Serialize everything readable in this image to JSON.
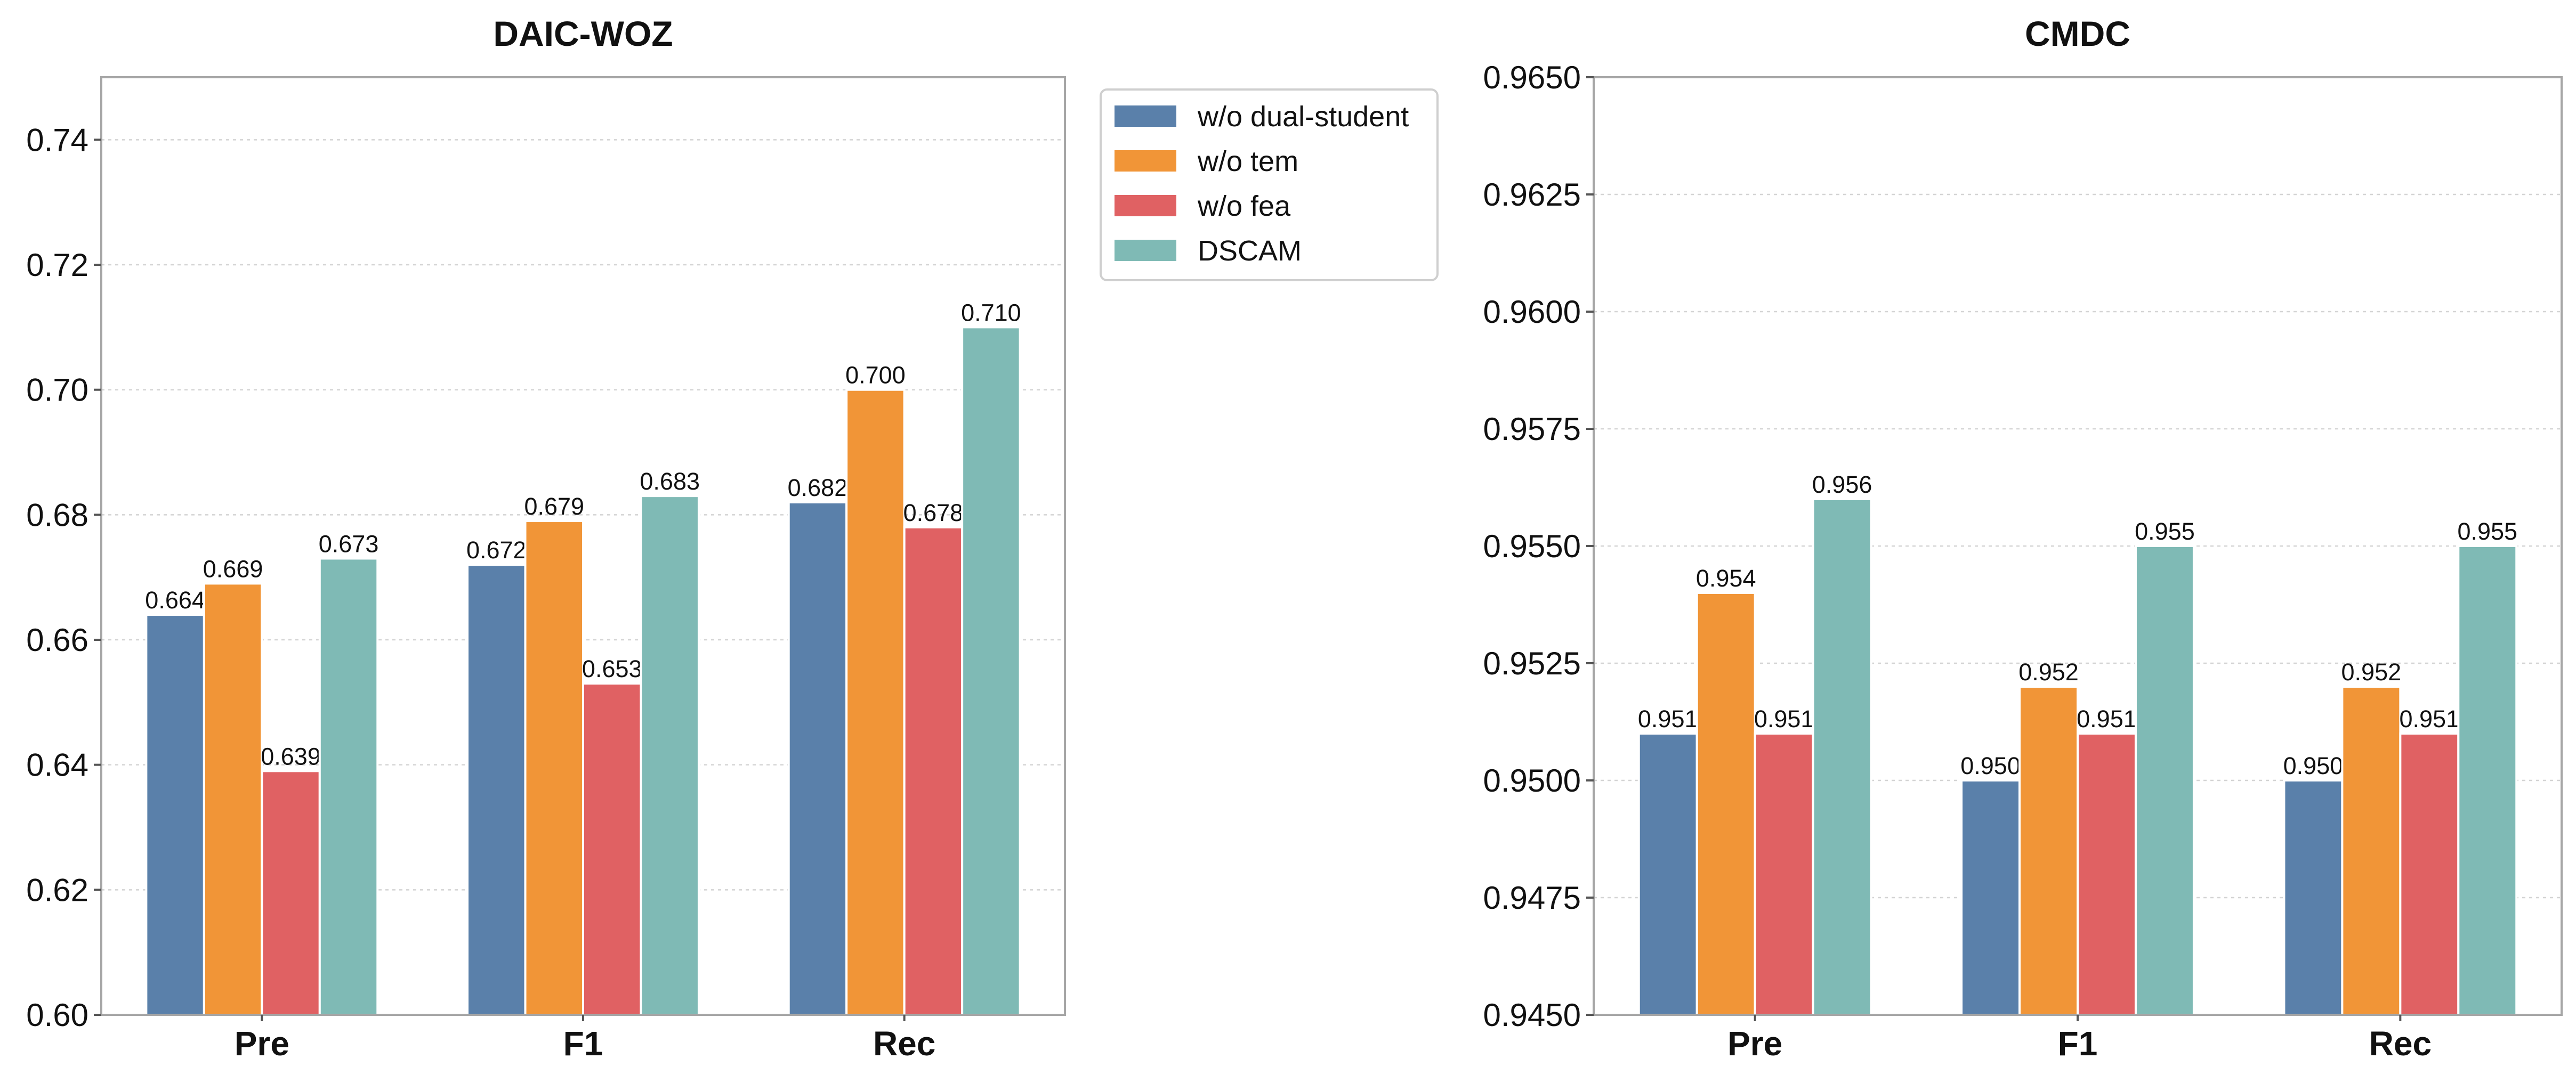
{
  "colors": {
    "w/o dual-student": "#5a80aa",
    "w/o tem": "#f19537",
    "w/o fea": "#e06163",
    "DSCAM": "#7fbab5"
  },
  "legend": {
    "items": [
      "w/o dual-student",
      "w/o tem",
      "w/o fea",
      "DSCAM"
    ]
  },
  "chart_data": [
    {
      "type": "bar",
      "title": "DAIC-WOZ",
      "categories": [
        "Pre",
        "F1",
        "Rec"
      ],
      "xlabel": "",
      "ylabel": "",
      "ylim": [
        0.6,
        0.75
      ],
      "yticks": [
        0.6,
        0.62,
        0.64,
        0.66,
        0.68,
        0.7,
        0.72,
        0.74
      ],
      "ytick_labels": [
        "0.60",
        "0.62",
        "0.64",
        "0.66",
        "0.68",
        "0.70",
        "0.72",
        "0.74"
      ],
      "grid": true,
      "legend_position": "outside-right",
      "series": [
        {
          "name": "w/o dual-student",
          "values": [
            0.664,
            0.672,
            0.682
          ],
          "labels": [
            "0.664",
            "0.672",
            "0.682"
          ]
        },
        {
          "name": "w/o tem",
          "values": [
            0.669,
            0.679,
            0.7
          ],
          "labels": [
            "0.669",
            "0.679",
            "0.700"
          ]
        },
        {
          "name": "w/o fea",
          "values": [
            0.639,
            0.653,
            0.678
          ],
          "labels": [
            "0.639",
            "0.653",
            "0.678"
          ]
        },
        {
          "name": "DSCAM",
          "values": [
            0.673,
            0.683,
            0.71
          ],
          "labels": [
            "0.673",
            "0.683",
            "0.710"
          ]
        }
      ]
    },
    {
      "type": "bar",
      "title": "CMDC",
      "categories": [
        "Pre",
        "F1",
        "Rec"
      ],
      "xlabel": "",
      "ylabel": "",
      "ylim": [
        0.945,
        0.965
      ],
      "yticks": [
        0.945,
        0.9475,
        0.95,
        0.9525,
        0.955,
        0.9575,
        0.96,
        0.9625,
        0.965
      ],
      "ytick_labels": [
        "0.9450",
        "0.9475",
        "0.9500",
        "0.9525",
        "0.9550",
        "0.9575",
        "0.9600",
        "0.9625",
        "0.9650"
      ],
      "grid": true,
      "series": [
        {
          "name": "w/o dual-student",
          "values": [
            0.951,
            0.95,
            0.95
          ],
          "labels": [
            "0.951",
            "0.950",
            "0.950"
          ]
        },
        {
          "name": "w/o tem",
          "values": [
            0.954,
            0.952,
            0.952
          ],
          "labels": [
            "0.954",
            "0.952",
            "0.952"
          ]
        },
        {
          "name": "w/o fea",
          "values": [
            0.951,
            0.951,
            0.951
          ],
          "labels": [
            "0.951",
            "0.951",
            "0.951"
          ]
        },
        {
          "name": "DSCAM",
          "values": [
            0.956,
            0.955,
            0.955
          ],
          "labels": [
            "0.956",
            "0.955",
            "0.955"
          ]
        }
      ]
    }
  ]
}
